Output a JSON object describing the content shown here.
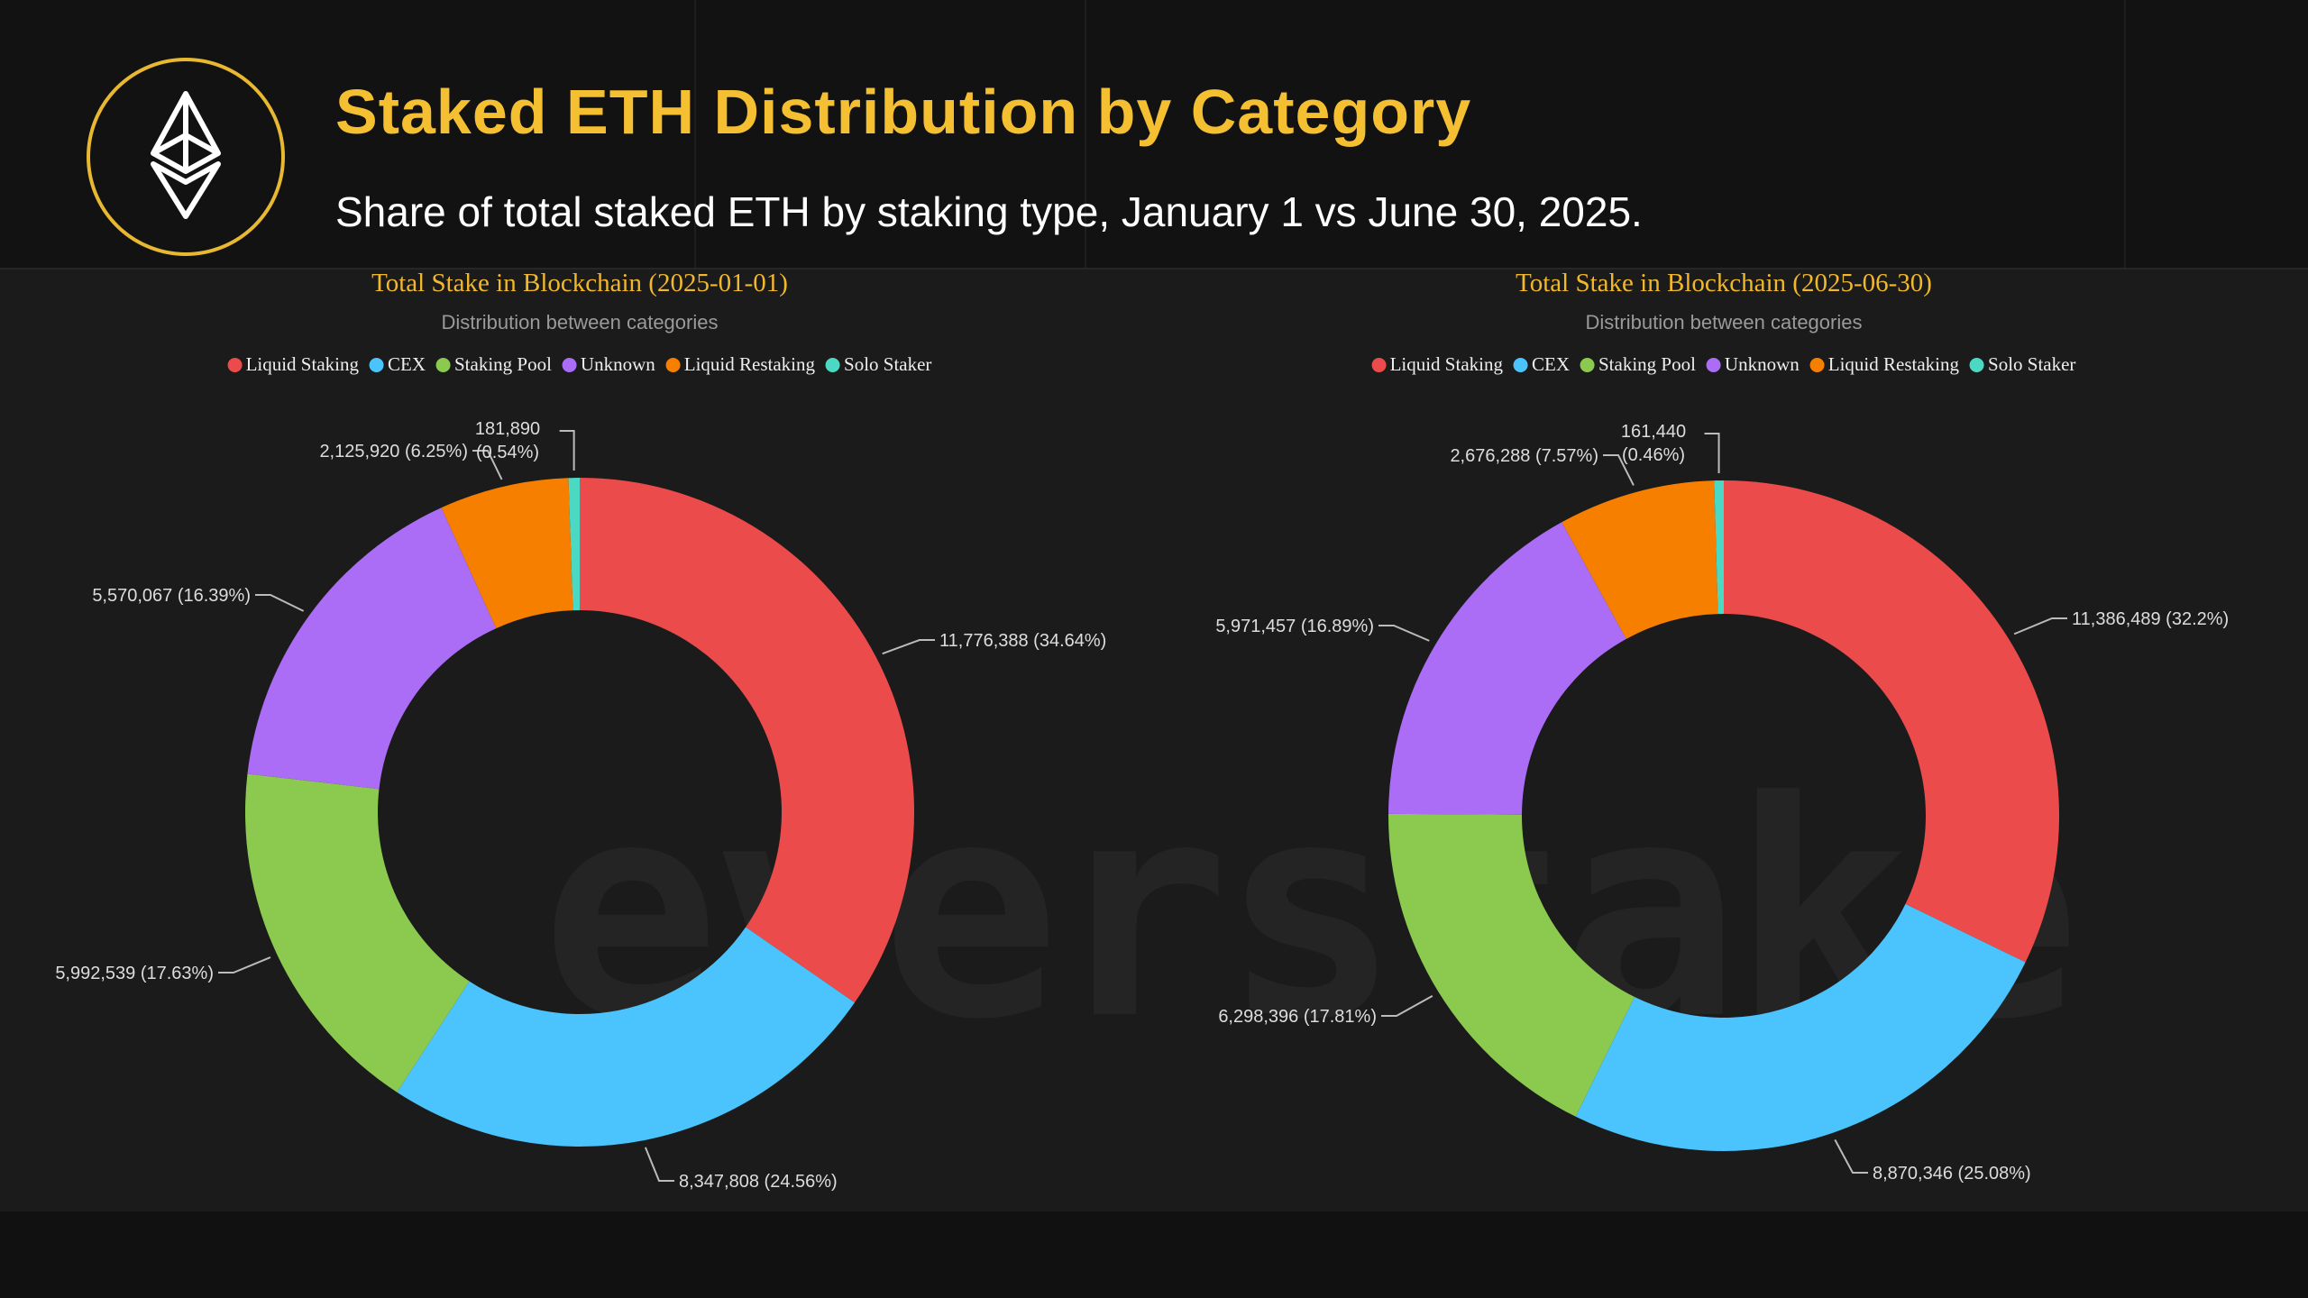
{
  "header": {
    "title": "Staked ETH Distribution by Category",
    "subtitle": "Share of total staked ETH by staking type, January 1 vs June 30, 2025.",
    "logo_icon": "ethereum-icon",
    "watermark": "everstake"
  },
  "colors": {
    "accent": "#f5bf32",
    "Liquid Staking": "#ec4b4b",
    "CEX": "#4bc3fc",
    "Staking Pool": "#8bca4e",
    "Unknown": "#ab6cf6",
    "Liquid Restaking": "#f77f00",
    "Solo Staker": "#4bd9c4"
  },
  "chart_data": [
    {
      "type": "pie",
      "donut": true,
      "title": "Total Stake in Blockchain (2025-01-01)",
      "subtitle": "Distribution between categories",
      "legend": [
        "Liquid Staking",
        "CEX",
        "Staking Pool",
        "Unknown",
        "Liquid Restaking",
        "Solo Staker"
      ],
      "legend_position": "top",
      "categories": [
        "Liquid Staking",
        "CEX",
        "Staking Pool",
        "Unknown",
        "Liquid Restaking",
        "Solo Staker"
      ],
      "values": [
        11776388,
        8347808,
        5992539,
        5570067,
        2125920,
        181890
      ],
      "labels": [
        "11,776,388 (34.64%)",
        "8,347,808 (24.56%)",
        "5,992,539 (17.63%)",
        "5,570,067 (16.39%)",
        "2,125,920 (6.25%)",
        "181,890|(0.54%)"
      ]
    },
    {
      "type": "pie",
      "donut": true,
      "title": "Total Stake in Blockchain (2025-06-30)",
      "subtitle": "Distribution between categories",
      "legend": [
        "Liquid Staking",
        "CEX",
        "Staking Pool",
        "Unknown",
        "Liquid Restaking",
        "Solo Staker"
      ],
      "legend_position": "top",
      "categories": [
        "Liquid Staking",
        "CEX",
        "Staking Pool",
        "Unknown",
        "Liquid Restaking",
        "Solo Staker"
      ],
      "values": [
        11386489,
        8870346,
        6298396,
        5971457,
        2676288,
        161440
      ],
      "labels": [
        "11,386,489 (32.2%)",
        "8,870,346 (25.08%)",
        "6,298,396 (17.81%)",
        "5,971,457 (16.89%)",
        "2,676,288 (7.57%)",
        "161,440|(0.46%)"
      ]
    }
  ]
}
